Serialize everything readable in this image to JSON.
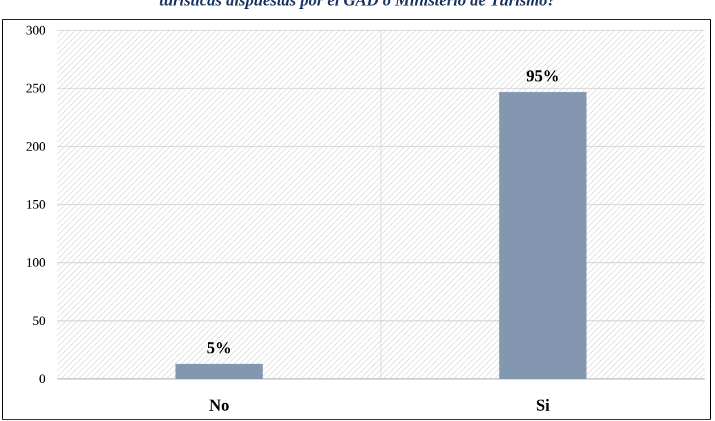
{
  "title": "turísticas dispuestas por el GAD o Ministerio de Turismo?",
  "chart_data": {
    "type": "bar",
    "categories": [
      "No",
      "Si"
    ],
    "values": [
      13,
      247
    ],
    "data_labels": [
      "5%",
      "95%"
    ],
    "ylim": [
      0,
      300
    ],
    "yticks": [
      "0",
      "50",
      "100",
      "150",
      "200",
      "250",
      "300"
    ],
    "xlabel": "",
    "ylabel": "",
    "grid": true,
    "bar_color": "#8497b0",
    "background_pattern": "diagonal-hatch"
  }
}
